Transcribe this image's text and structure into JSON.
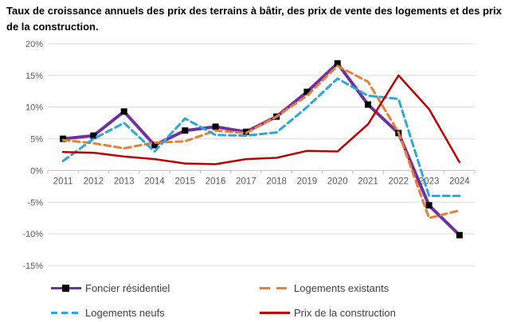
{
  "title": "Taux de croissance annuels des prix des terrains à bâtir, des prix de vente des logements et des prix de la construction.",
  "chart_data": {
    "type": "line",
    "categories": [
      "2011",
      "2012",
      "2013",
      "2014",
      "2015",
      "2016",
      "2017",
      "2018",
      "2019",
      "2020",
      "2021",
      "2022",
      "2023",
      "2024"
    ],
    "series": [
      {
        "name": "Foncier résidentiel",
        "color": "#7030A0",
        "dash": "solid",
        "marker": "square",
        "width": 4,
        "values": [
          5.0,
          5.5,
          9.3,
          4.0,
          6.3,
          6.9,
          6.1,
          8.5,
          12.4,
          16.9,
          10.4,
          5.9,
          -5.5,
          -10.2
        ]
      },
      {
        "name": "Logements existants",
        "color": "#ED7D31",
        "dash": "dashed",
        "marker": "none",
        "width": 3,
        "values": [
          4.8,
          4.3,
          3.5,
          4.4,
          4.6,
          6.3,
          5.9,
          8.5,
          11.8,
          16.5,
          14.0,
          6.0,
          -7.5,
          -6.3
        ]
      },
      {
        "name": "Logements neufs",
        "color": "#2AA7DE",
        "dash": "dashed",
        "marker": "none",
        "width": 3,
        "values": [
          1.5,
          5.0,
          7.5,
          3.0,
          8.2,
          5.6,
          5.5,
          6.0,
          10.0,
          14.5,
          11.8,
          11.3,
          -4.0,
          -4.0
        ]
      },
      {
        "name": "Prix de la construction",
        "color": "#C00000",
        "dash": "solid",
        "marker": "none",
        "width": 2.5,
        "values": [
          2.9,
          2.8,
          2.2,
          1.8,
          1.1,
          1.0,
          1.8,
          2.0,
          3.1,
          3.0,
          7.3,
          15.0,
          9.7,
          1.3
        ]
      }
    ],
    "ylim": [
      -15,
      20
    ],
    "ytick_step": 5,
    "ytick_labels": [
      "20%",
      "15%",
      "10%",
      "5%",
      "0%",
      "-5%",
      "-10%",
      "-15%"
    ],
    "xlabel": "",
    "ylabel": "",
    "grid": true,
    "legend_position": "bottom",
    "colors": {
      "grid": "#D9D9D9",
      "axis": "#BFBFBF",
      "tick_label": "#595959",
      "marker": "#000000"
    }
  }
}
